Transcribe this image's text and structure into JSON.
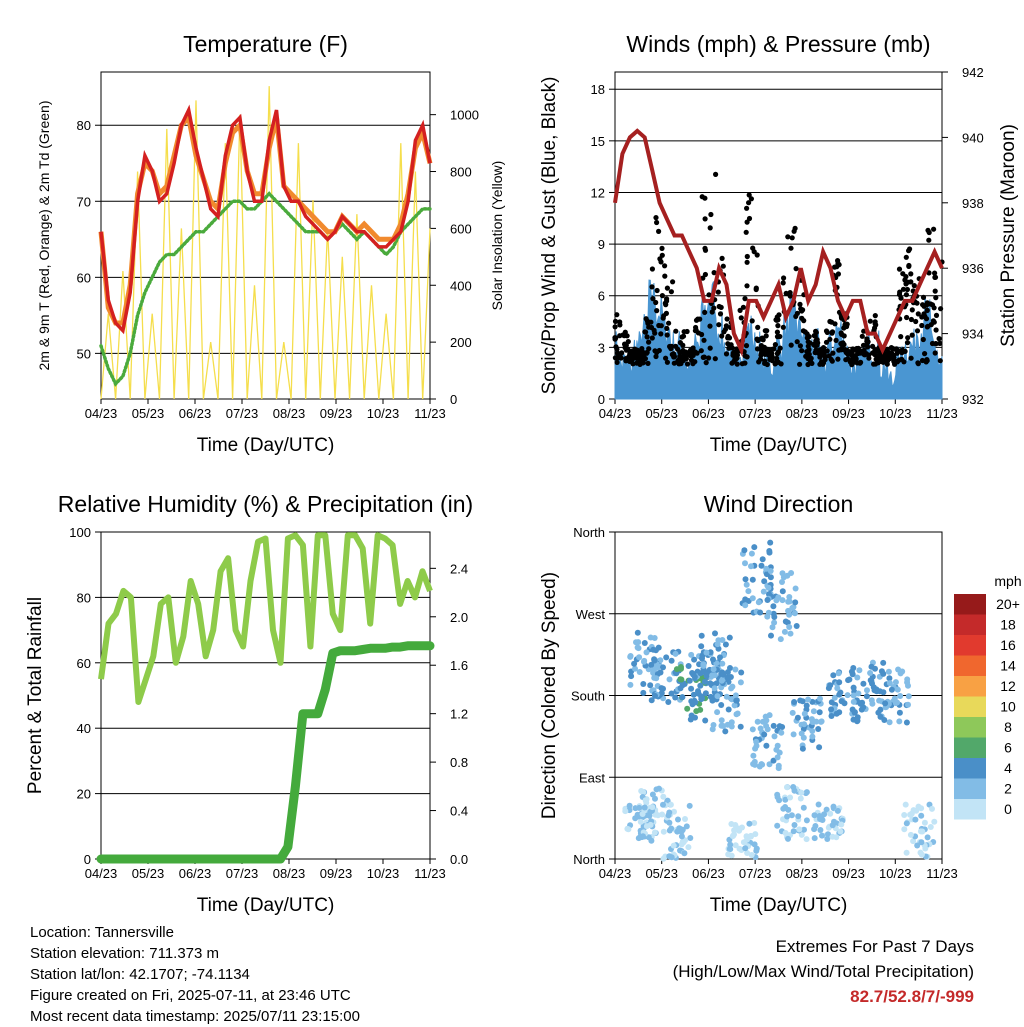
{
  "x_ticks": [
    "04/23",
    "05/23",
    "06/23",
    "07/23",
    "08/23",
    "09/23",
    "10/23",
    "11/23"
  ],
  "chart_data": [
    {
      "type": "line",
      "title": "Temperature (F)",
      "xlabel": "Time (Day/UTC)",
      "ylabel": "2m & 9m T (Red, Orange) & 2m Td (Green)",
      "y2label": "Solar Insolation (Yellow)",
      "ylim": [
        44,
        87
      ],
      "y2lim": [
        0,
        1150
      ],
      "yticks": [
        "50",
        "60",
        "70",
        "80"
      ],
      "y2ticks": [
        "0",
        "200",
        "400",
        "600",
        "800",
        "1000"
      ],
      "series": [
        {
          "name": "2m T",
          "color": "#d42020",
          "values": [
            66,
            57,
            54,
            53,
            58,
            70,
            76,
            74,
            70,
            71,
            75,
            80,
            82,
            77,
            73,
            69,
            68,
            76,
            80,
            81,
            74,
            70,
            70,
            78,
            82,
            72,
            70,
            70,
            68,
            67,
            66,
            65,
            66,
            68,
            67,
            66,
            66,
            65,
            64,
            64,
            65,
            66,
            70,
            78,
            80,
            75
          ]
        },
        {
          "name": "9m T",
          "color": "#f18a2e",
          "values": [
            66,
            56,
            54,
            54,
            59,
            71,
            75,
            74,
            71,
            72,
            76,
            80,
            81,
            76,
            73,
            70,
            69,
            75,
            79,
            80,
            74,
            71,
            71,
            77,
            81,
            72,
            71,
            70,
            69,
            68,
            67,
            66,
            66,
            68,
            67,
            66,
            67,
            66,
            65,
            65,
            65,
            67,
            71,
            77,
            79,
            75
          ]
        },
        {
          "name": "2m Td",
          "color": "#4aaa3c",
          "values": [
            51,
            48,
            46,
            47,
            50,
            55,
            58,
            60,
            62,
            63,
            63,
            64,
            65,
            66,
            66,
            67,
            68,
            69,
            70,
            70,
            69,
            69,
            70,
            71,
            70,
            69,
            68,
            67,
            66,
            66,
            66,
            65,
            66,
            67,
            66,
            65,
            66,
            65,
            64,
            63,
            64,
            66,
            67,
            68,
            69,
            69
          ]
        },
        {
          "name": "Solar Insolation",
          "color": "#f5de4c",
          "values": [
            0,
            300,
            0,
            450,
            0,
            800,
            0,
            300,
            0,
            950,
            0,
            600,
            0,
            1050,
            0,
            200,
            0,
            900,
            0,
            1000,
            0,
            400,
            0,
            1100,
            0,
            200,
            0,
            900,
            0,
            700,
            0,
            600,
            0,
            500,
            0,
            650,
            0,
            400,
            0,
            300,
            0,
            900,
            0,
            800,
            0,
            600
          ]
        }
      ]
    },
    {
      "type": "scatter",
      "title": "Winds (mph) & Pressure (mb)",
      "xlabel": "Time (Day/UTC)",
      "ylabel": "Sonic/Prop Wind & Gust (Blue, Black)",
      "y2label": "Station Pressure (Maroon)",
      "ylim": [
        0,
        19
      ],
      "y2lim": [
        932,
        942
      ],
      "yticks": [
        "0",
        "3",
        "6",
        "9",
        "12",
        "15",
        "18"
      ],
      "y2ticks": [
        "932",
        "934",
        "936",
        "938",
        "940",
        "942"
      ],
      "series": [
        {
          "name": "Station Pressure",
          "color": "#a52020",
          "values": [
            938,
            939.5,
            940,
            940.2,
            940,
            939,
            938,
            937.5,
            937,
            937,
            936.5,
            936,
            935,
            935,
            936,
            935.5,
            934,
            933.5,
            935,
            935,
            934.5,
            935,
            935.5,
            934.5,
            935,
            936,
            935,
            935.5,
            936.5,
            936,
            935,
            934.5,
            935,
            935,
            934,
            934,
            933.5,
            934,
            934.5,
            935,
            935,
            935.5,
            936,
            936.5,
            936
          ]
        },
        {
          "name": "Sonic/Prop Wind",
          "color": "#4a96d2",
          "values": [
            3,
            2,
            2,
            3,
            4,
            6,
            5,
            4,
            3,
            3,
            2,
            3,
            5,
            6,
            4,
            3,
            2,
            3,
            4,
            3,
            2,
            2,
            3,
            4,
            5,
            4,
            3,
            3,
            2,
            3,
            4,
            3,
            2,
            2,
            3,
            3,
            2,
            1,
            2,
            3,
            3,
            4,
            5,
            3,
            2
          ]
        },
        {
          "name": "Gust",
          "color": "#000000",
          "values": [
            5,
            4,
            3,
            3,
            5,
            11,
            9,
            7,
            4,
            4,
            3,
            5,
            12,
            14,
            10,
            5,
            3,
            6,
            12,
            9,
            4,
            3,
            5,
            10,
            11,
            7,
            4,
            4,
            3,
            5,
            9,
            5,
            3,
            2,
            4,
            5,
            3,
            2,
            3,
            8,
            9,
            7,
            6,
            10,
            8
          ]
        }
      ]
    },
    {
      "type": "line",
      "title": "Relative Humidity (%) & Precipitation (in)",
      "xlabel": "Time (Day/UTC)",
      "ylabel": "Percent & Total Rainfall",
      "ylim": [
        0,
        100
      ],
      "y2lim": [
        0,
        2.7
      ],
      "yticks": [
        "0",
        "20",
        "40",
        "60",
        "80",
        "100"
      ],
      "y2ticks": [
        "0.0",
        "0.4",
        "0.8",
        "1.2",
        "1.6",
        "2.0",
        "2.4"
      ],
      "series": [
        {
          "name": "Relative Humidity",
          "color": "#8ecb4a",
          "values": [
            55,
            72,
            75,
            82,
            80,
            48,
            55,
            62,
            78,
            80,
            60,
            68,
            85,
            78,
            62,
            70,
            88,
            92,
            70,
            65,
            85,
            97,
            98,
            70,
            60,
            98,
            99,
            96,
            65,
            99,
            99,
            75,
            70,
            99,
            99,
            95,
            72,
            99,
            98,
            96,
            78,
            85,
            80,
            88,
            82
          ]
        },
        {
          "name": "Total Precipitation",
          "color": "#44aa3c",
          "values": [
            0,
            0,
            0,
            0,
            0,
            0,
            0,
            0,
            0,
            0,
            0,
            0,
            0,
            0,
            0,
            0,
            0,
            0,
            0,
            0,
            0,
            0,
            0,
            0,
            0,
            0.1,
            0.6,
            1.2,
            1.2,
            1.2,
            1.4,
            1.7,
            1.72,
            1.72,
            1.72,
            1.73,
            1.74,
            1.74,
            1.74,
            1.75,
            1.75,
            1.76,
            1.76,
            1.76,
            1.76
          ]
        }
      ]
    },
    {
      "type": "scatter",
      "title": "Wind Direction",
      "xlabel": "Time (Day/UTC)",
      "ylabel": "Direction (Colored By Speed)",
      "ylim": [
        0,
        360
      ],
      "yticks": [
        "North",
        "East",
        "South",
        "West",
        "North"
      ],
      "colorbar": {
        "title": "mph",
        "labels": [
          "20+",
          "18",
          "16",
          "14",
          "12",
          "10",
          "8",
          "6",
          "4",
          "2",
          "0"
        ],
        "colors": [
          "#961a1a",
          "#c42a2a",
          "#e13a2e",
          "#f0672e",
          "#f8a144",
          "#e8d95a",
          "#8ec85a",
          "#52a86a",
          "#4a8fc8",
          "#82bce6",
          "#c2e4f6"
        ]
      },
      "clusters": [
        {
          "x": 0.05,
          "dir": [
            20,
            60
          ],
          "speed": 2
        },
        {
          "x": 0.06,
          "dir": [
            180,
            250
          ],
          "speed": 3
        },
        {
          "x": 0.08,
          "dir": [
            20,
            80
          ],
          "speed": 2
        },
        {
          "x": 0.1,
          "dir": [
            170,
            230
          ],
          "speed": 4
        },
        {
          "x": 0.12,
          "dir": [
            0,
            60
          ],
          "speed": 2
        },
        {
          "x": 0.15,
          "dir": [
            150,
            220
          ],
          "speed": 5
        },
        {
          "x": 0.18,
          "dir": [
            170,
            230
          ],
          "speed": 4
        },
        {
          "x": 0.2,
          "dir": [
            190,
            250
          ],
          "speed": 4
        },
        {
          "x": 0.22,
          "dir": [
            140,
            210
          ],
          "speed": 3
        },
        {
          "x": 0.25,
          "dir": [
            0,
            40
          ],
          "speed": 1
        },
        {
          "x": 0.28,
          "dir": [
            270,
            350
          ],
          "speed": 4
        },
        {
          "x": 0.3,
          "dir": [
            100,
            160
          ],
          "speed": 3
        },
        {
          "x": 0.33,
          "dir": [
            240,
            320
          ],
          "speed": 3
        },
        {
          "x": 0.35,
          "dir": [
            20,
            80
          ],
          "speed": 2
        },
        {
          "x": 0.38,
          "dir": [
            120,
            180
          ],
          "speed": 3
        },
        {
          "x": 0.42,
          "dir": [
            20,
            60
          ],
          "speed": 2
        },
        {
          "x": 0.45,
          "dir": [
            150,
            210
          ],
          "speed": 4
        },
        {
          "x": 0.5,
          "dir": [
            160,
            220
          ],
          "speed": 4
        },
        {
          "x": 0.55,
          "dir": [
            150,
            210
          ],
          "speed": 3
        },
        {
          "x": 0.6,
          "dir": [
            0,
            60
          ],
          "speed": 1
        }
      ]
    }
  ],
  "info": {
    "location": "Location: Tannersville",
    "elevation": "Station elevation: 711.373 m",
    "latlon": "Station lat/lon: 42.1707; -74.1134",
    "created": "Figure created on Fri, 2025-07-11, at 23:46 UTC",
    "latest": "Most recent data timestamp: 2025/07/11 23:15:00"
  },
  "extremes": {
    "line1": "Extremes For Past 7 Days",
    "line2": "(High/Low/Max Wind/Total Precipitation)",
    "values": "82.7/52.8/7/-999"
  }
}
